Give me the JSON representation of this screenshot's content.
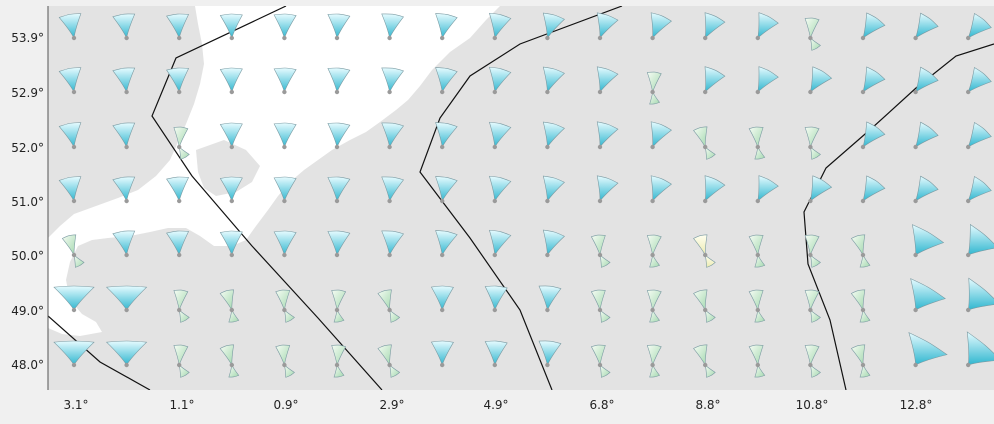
{
  "map": {
    "y_ticks": [
      "53.9°",
      "52.9°",
      "52.0°",
      "51.0°",
      "50.0°",
      "49.0°",
      "48.0°"
    ],
    "x_ticks": [
      "3.1°",
      "1.1°",
      "0.9°",
      "2.9°",
      "4.9°",
      "6.8°",
      "8.8°",
      "10.8°",
      "12.8°"
    ],
    "colors": {
      "land": "#e3e3e3",
      "sea": "#ffffff",
      "border": "#111111",
      "petal_blue_light": "#e8fbff",
      "petal_blue_dark": "#2fb6cf",
      "petal_green_light": "#f4fbf2",
      "petal_green_dark": "#a9dbb4",
      "petal_yellow": "#f6f6c6",
      "anchor_dot": "#9a9a9a"
    }
  }
}
